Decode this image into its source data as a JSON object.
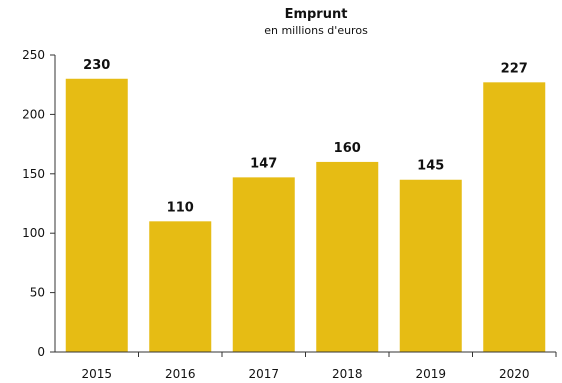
{
  "chart_data": {
    "type": "bar",
    "title": "Emprunt",
    "subtitle": "en millions d'euros",
    "categories": [
      "2015",
      "2016",
      "2017",
      "2018",
      "2019",
      "2020"
    ],
    "values": [
      230,
      110,
      147,
      160,
      145,
      227
    ],
    "data_labels": [
      "230",
      "110",
      "147",
      "160",
      "145",
      "227"
    ],
    "ylim": [
      0,
      250
    ],
    "yticks": [
      0,
      50,
      100,
      150,
      200,
      250
    ],
    "ytick_labels": [
      "0",
      "50",
      "100",
      "150",
      "200",
      "250"
    ],
    "xlabel": "",
    "ylabel": "",
    "grid": false,
    "bar_color": "#E6BC14"
  }
}
